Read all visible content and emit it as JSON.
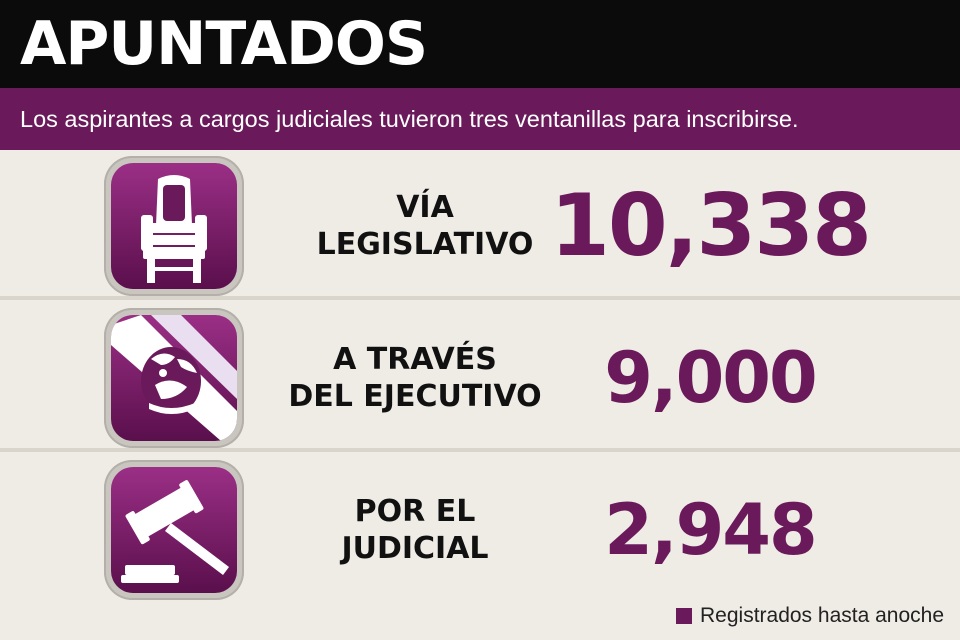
{
  "header": {
    "title": "APUNTADOS"
  },
  "subtitle": "Los aspirantes a cargos judiciales tuvieron tres ventanillas para inscribirse.",
  "rows": [
    {
      "line1": "VÍA",
      "line2": "LEGISLATIVO",
      "value": "10,338",
      "icon": "chair-icon"
    },
    {
      "line1": "A TRAVÉS",
      "line2": "DEL EJECUTIVO",
      "value": "9,000",
      "icon": "eagle-emblem-icon"
    },
    {
      "line1": "POR EL",
      "line2": "JUDICIAL",
      "value": "2,948",
      "icon": "gavel-icon"
    }
  ],
  "legend": {
    "label": "Registrados hasta anoche",
    "color": "#6a1a5a"
  },
  "colors": {
    "accent": "#6a1a5a",
    "header_bg": "#0b0b0b",
    "row_bg": "#efece6"
  }
}
